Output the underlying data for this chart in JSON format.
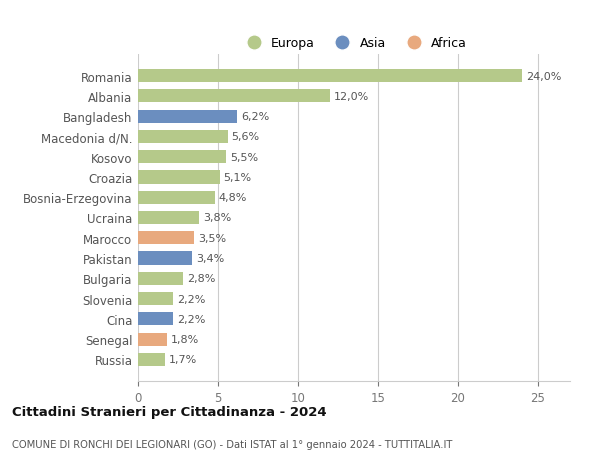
{
  "categories": [
    "Russia",
    "Senegal",
    "Cina",
    "Slovenia",
    "Bulgaria",
    "Pakistan",
    "Marocco",
    "Ucraina",
    "Bosnia-Erzegovina",
    "Croazia",
    "Kosovo",
    "Macedonia d/N.",
    "Bangladesh",
    "Albania",
    "Romania"
  ],
  "values": [
    1.7,
    1.8,
    2.2,
    2.2,
    2.8,
    3.4,
    3.5,
    3.8,
    4.8,
    5.1,
    5.5,
    5.6,
    6.2,
    12.0,
    24.0
  ],
  "labels": [
    "1,7%",
    "1,8%",
    "2,2%",
    "2,2%",
    "2,8%",
    "3,4%",
    "3,5%",
    "3,8%",
    "4,8%",
    "5,1%",
    "5,5%",
    "5,6%",
    "6,2%",
    "12,0%",
    "24,0%"
  ],
  "colors": [
    "#b5c98a",
    "#e8a97e",
    "#6b8ebf",
    "#b5c98a",
    "#b5c98a",
    "#6b8ebf",
    "#e8a97e",
    "#b5c98a",
    "#b5c98a",
    "#b5c98a",
    "#b5c98a",
    "#b5c98a",
    "#6b8ebf",
    "#b5c98a",
    "#b5c98a"
  ],
  "legend": [
    {
      "label": "Europa",
      "color": "#b5c98a"
    },
    {
      "label": "Asia",
      "color": "#6b8ebf"
    },
    {
      "label": "Africa",
      "color": "#e8a97e"
    }
  ],
  "title1": "Cittadini Stranieri per Cittadinanza - 2024",
  "title2": "COMUNE DI RONCHI DEI LEGIONARI (GO) - Dati ISTAT al 1° gennaio 2024 - TUTTITALIA.IT",
  "xlim": [
    0,
    27
  ],
  "xticks": [
    0,
    5,
    10,
    15,
    20,
    25
  ],
  "background_color": "#ffffff",
  "grid_color": "#cccccc"
}
